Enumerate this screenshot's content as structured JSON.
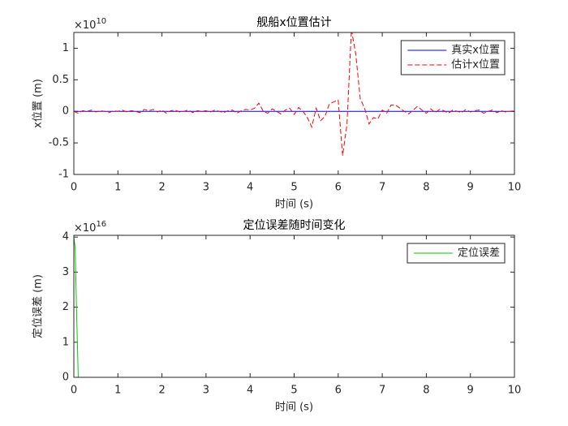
{
  "chart_data": [
    {
      "type": "line",
      "title": "舰船x位置估计",
      "xlabel": "时间 (s)",
      "ylabel": "x位置 (m)",
      "y_multiplier": {
        "base": "×10",
        "exponent": "10"
      },
      "x": [
        0,
        0.1,
        0.2,
        0.3,
        0.4,
        0.5,
        0.6,
        0.7,
        0.8,
        0.9,
        1,
        1.1,
        1.2,
        1.3,
        1.4,
        1.5,
        1.6,
        1.7,
        1.8,
        1.9,
        2,
        2.1,
        2.2,
        2.3,
        2.4,
        2.5,
        2.6,
        2.7,
        2.8,
        2.9,
        3,
        3.1,
        3.2,
        3.3,
        3.4,
        3.5,
        3.6,
        3.7,
        3.8,
        3.9,
        4,
        4.1,
        4.2,
        4.3,
        4.4,
        4.5,
        4.6,
        4.7,
        4.8,
        4.9,
        5,
        5.1,
        5.2,
        5.3,
        5.4,
        5.5,
        5.6,
        5.7,
        5.8,
        5.9,
        6,
        6.1,
        6.2,
        6.3,
        6.4,
        6.5,
        6.6,
        6.7,
        6.8,
        6.9,
        7,
        7.1,
        7.2,
        7.3,
        7.4,
        7.5,
        7.6,
        7.7,
        7.8,
        7.9,
        8,
        8.1,
        8.2,
        8.3,
        8.4,
        8.5,
        8.6,
        8.7,
        8.8,
        8.9,
        9,
        9.1,
        9.2,
        9.3,
        9.4,
        9.5,
        9.6,
        9.7,
        9.8,
        9.9,
        10
      ],
      "series": [
        {
          "name": "真实x位置",
          "color": "#0000ff",
          "linestyle": "solid",
          "values": [
            0,
            0,
            0,
            0,
            0,
            0,
            0,
            0,
            0,
            0,
            0,
            0,
            0,
            0,
            0,
            0,
            0,
            0,
            0,
            0,
            0,
            0,
            0,
            0,
            0,
            0,
            0,
            0,
            0,
            0,
            0,
            0,
            0,
            0,
            0,
            0,
            0,
            0,
            0,
            0,
            0,
            0,
            0,
            0,
            0,
            0,
            0,
            0,
            0,
            0,
            0,
            0,
            0,
            0,
            0,
            0,
            0,
            0,
            0,
            0,
            0,
            0,
            0,
            0,
            0,
            0,
            0,
            0,
            0,
            0,
            0,
            0,
            0,
            0,
            0,
            0,
            0,
            0,
            0,
            0,
            0,
            0,
            0,
            0,
            0,
            0,
            0,
            0,
            0,
            0,
            0,
            0,
            0,
            0,
            0,
            0,
            0,
            0,
            0,
            0,
            0
          ]
        },
        {
          "name": "估计x位置",
          "color": "#ff0000",
          "linestyle": "dashed",
          "values": [
            0,
            -0.03,
            0.01,
            0,
            0.02,
            -0.01,
            0.01,
            0,
            -0.02,
            0.01,
            0,
            0.02,
            -0.01,
            0.01,
            0,
            -0.02,
            0.03,
            0.01,
            0.03,
            -0.01,
            0.02,
            -0.03,
            0.01,
            0.02,
            -0.01,
            0,
            0.02,
            -0.02,
            0.01,
            0,
            0.01,
            -0.01,
            0.02,
            0,
            -0.02,
            0.01,
            0.02,
            -0.03,
            0.01,
            0.03,
            0.02,
            0.05,
            0.13,
            0,
            -0.03,
            0.04,
            0,
            -0.04,
            0.02,
            0.05,
            -0.05,
            0.06,
            0,
            -0.1,
            -0.25,
            0.05,
            -0.15,
            -0.08,
            0.12,
            0.15,
            0.18,
            -0.7,
            -0.2,
            1.3,
            0.9,
            0.2,
            0.05,
            -0.2,
            -0.1,
            -0.12,
            0.02,
            -0.03,
            0.1,
            0.1,
            0.05,
            0,
            -0.04,
            0.02,
            0.08,
            0.02,
            -0.03,
            0.04,
            -0.02,
            0.03,
            0.01,
            -0.03,
            0.02,
            0,
            -0.02,
            0.03,
            -0.01,
            0.01,
            0.02,
            -0.03,
            0,
            0.02,
            -0.02,
            0.01,
            -0.01,
            0,
            0.01
          ]
        }
      ],
      "xlim": [
        0,
        10
      ],
      "xticks": [
        0,
        1,
        2,
        3,
        4,
        5,
        6,
        7,
        8,
        9,
        10
      ],
      "ylim": [
        -1,
        1.25
      ],
      "yticks": [
        -1,
        -0.5,
        0,
        0.5,
        1
      ],
      "legend": "northeast"
    },
    {
      "type": "line",
      "title": "定位误差随时间变化",
      "xlabel": "时间 (s)",
      "ylabel": "定位误差 (m)",
      "y_multiplier": {
        "base": "×10",
        "exponent": "16"
      },
      "x": [
        0,
        0.03,
        0.06,
        0.08,
        0.1,
        1,
        2,
        3,
        4,
        5,
        6,
        7,
        8,
        9,
        10
      ],
      "series": [
        {
          "name": "定位误差",
          "color": "#00cc00",
          "linestyle": "solid",
          "values": [
            4,
            3.7,
            2,
            1,
            0,
            0,
            0,
            0,
            0,
            0,
            0,
            0,
            0,
            0,
            0
          ]
        }
      ],
      "xlim": [
        0,
        10
      ],
      "xticks": [
        0,
        1,
        2,
        3,
        4,
        5,
        6,
        7,
        8,
        9,
        10
      ],
      "ylim": [
        0,
        4.05
      ],
      "yticks": [
        0,
        1,
        2,
        3,
        4
      ],
      "legend": "northeast"
    }
  ]
}
